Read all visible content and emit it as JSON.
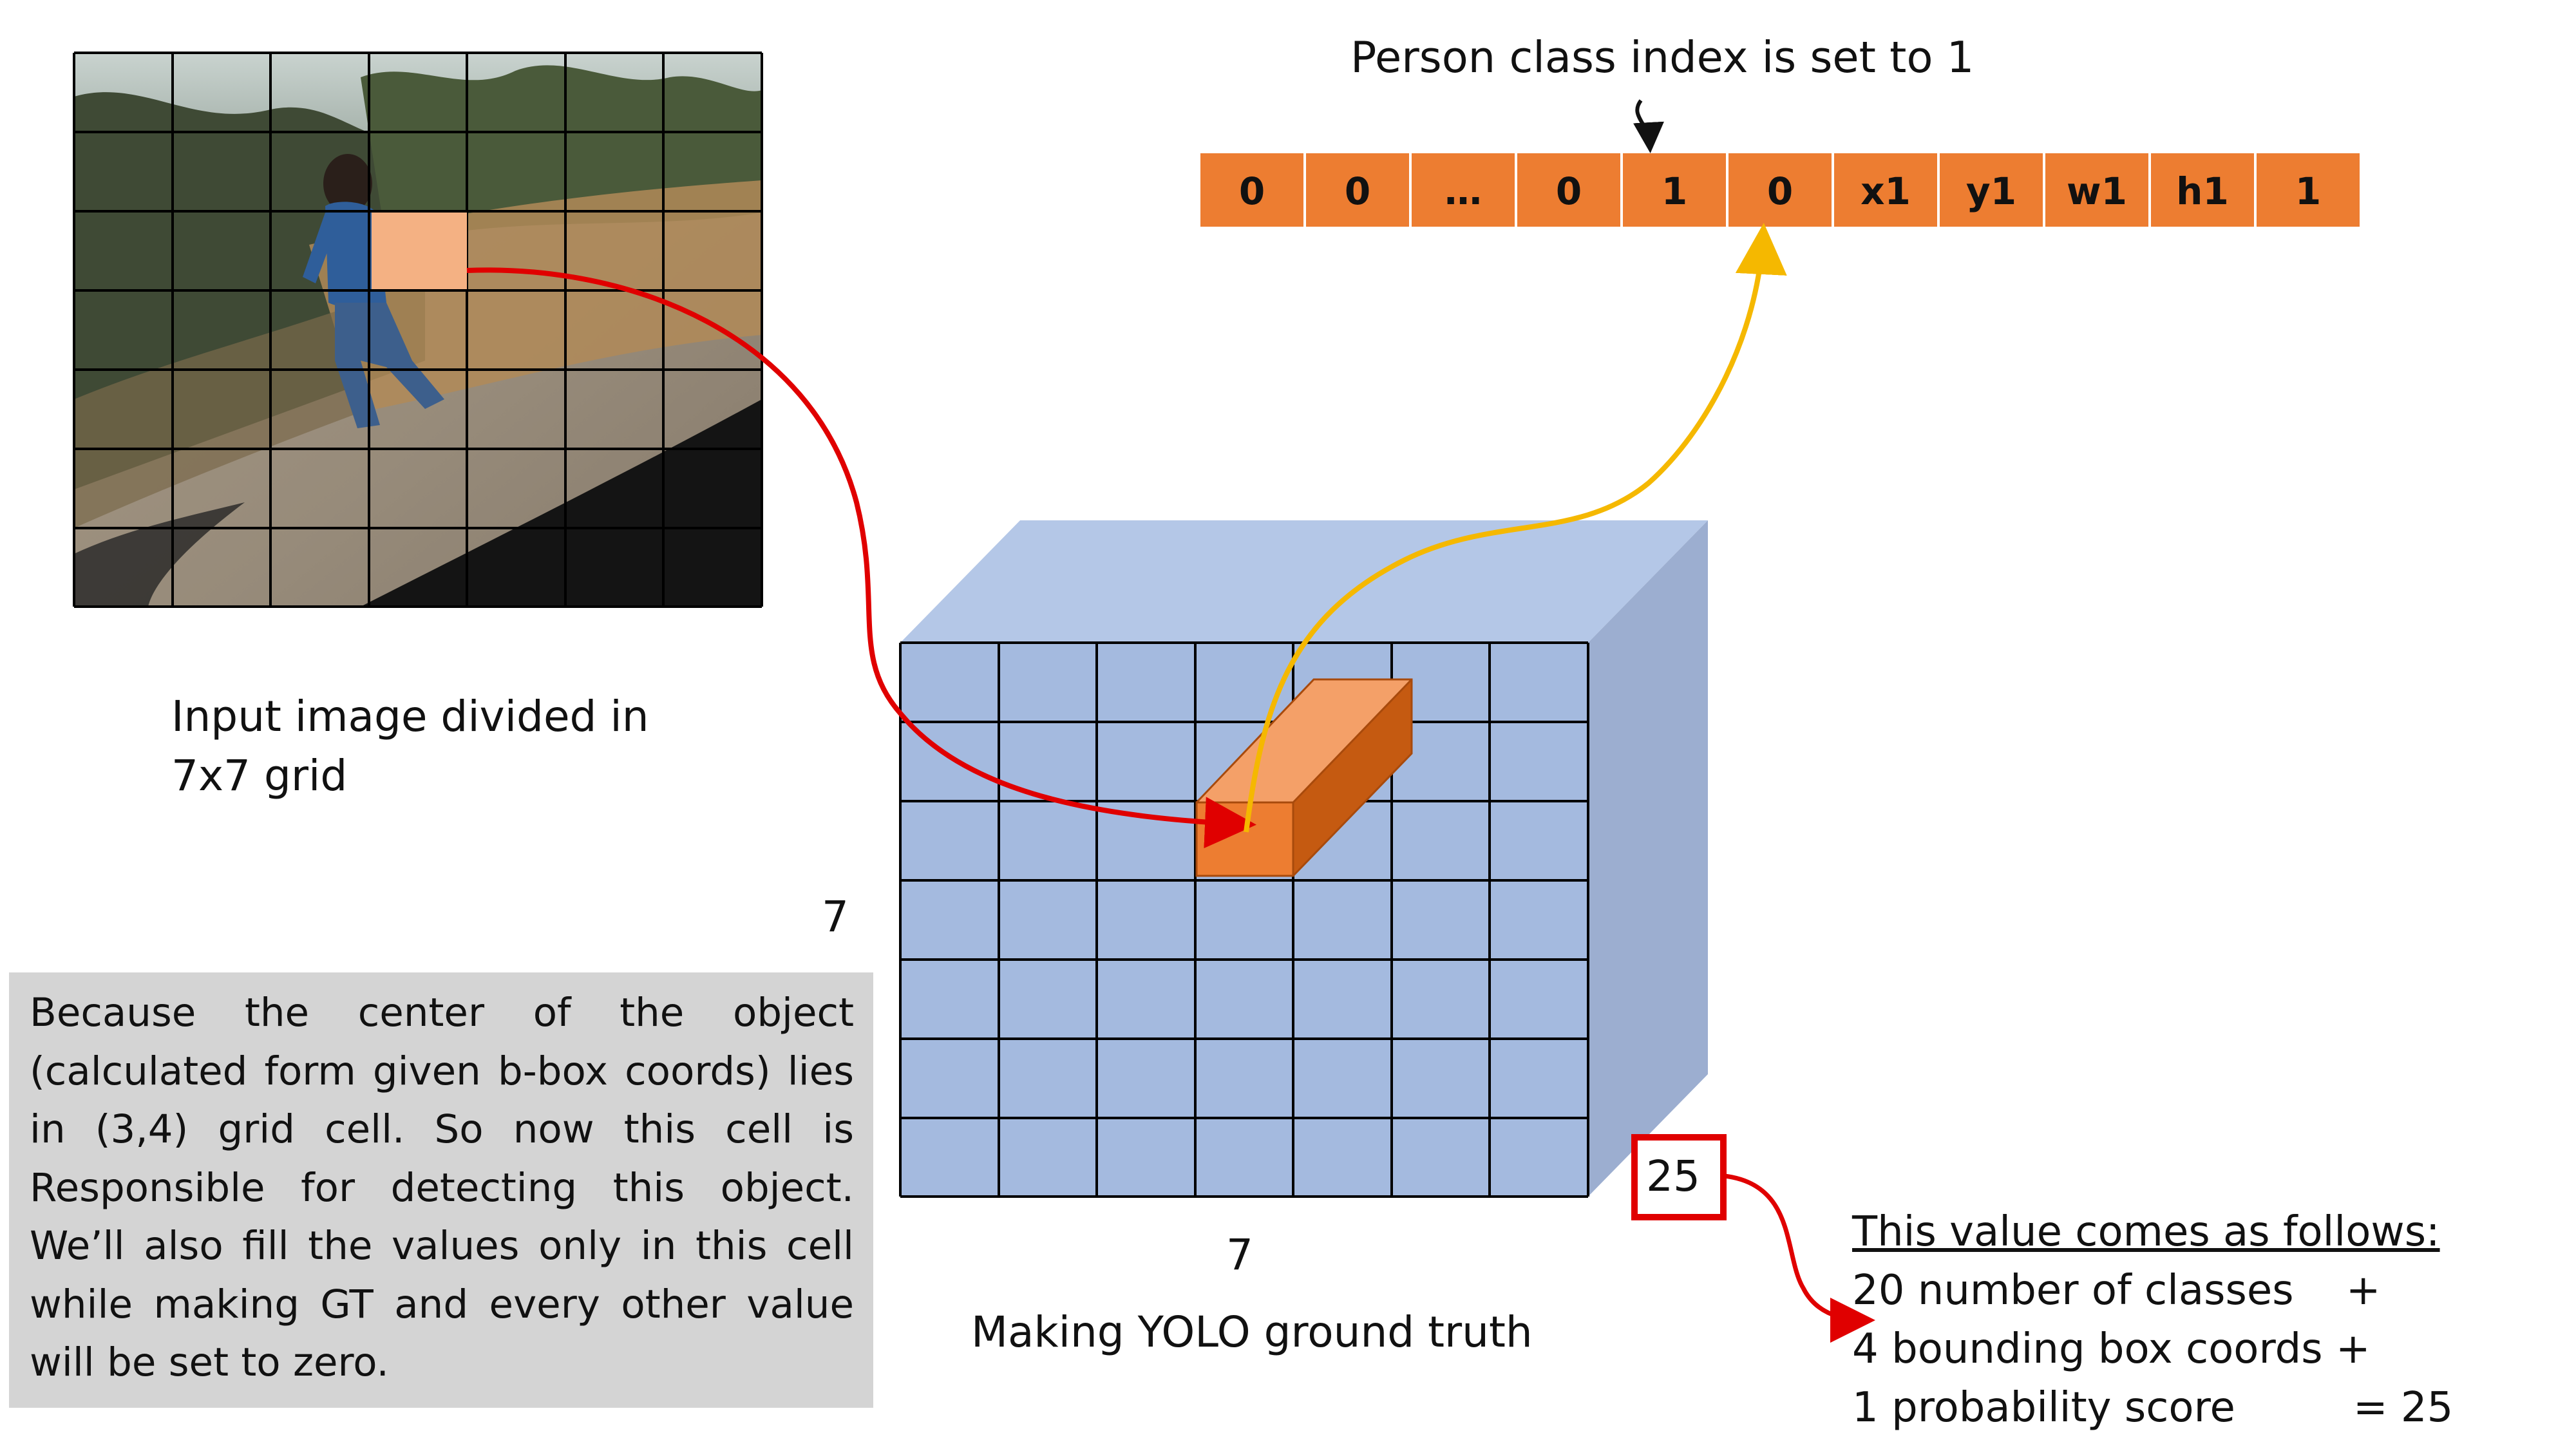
{
  "vector_caption": "Person class index is set to 1",
  "vector_cells": [
    "0",
    "0",
    "…",
    "0",
    "1",
    "0",
    "x1",
    "y1",
    "w1",
    "h1",
    "1"
  ],
  "input_caption": [
    "Input image divided in",
    "7x7 grid"
  ],
  "grid_height_label": "7",
  "grid_width_label": "7",
  "tensor_caption": "Making YOLO ground truth",
  "depth_label": "25",
  "note": "Because the center of the object (calculated form given b-box coords) lies in (3,4) grid cell. So now this cell is Responsible for detecting this object. We’ll also fill the values only in this cell while making GT and every other value will be set to zero.",
  "explanation": {
    "heading": "This value comes as follows:",
    "lines": [
      "20 number of classes    +",
      "4 bounding box coords +",
      "1 probability score         = 25"
    ]
  },
  "colors": {
    "vector_cell": "#ed7d31",
    "tensor_front": "#a4badf",
    "tensor_top": "#b4c7e7",
    "tensor_side": "#9caed0",
    "red_arrow": "#e00000",
    "yellow_arrow": "#f5b800",
    "note_bg": "#d4d4d4"
  }
}
